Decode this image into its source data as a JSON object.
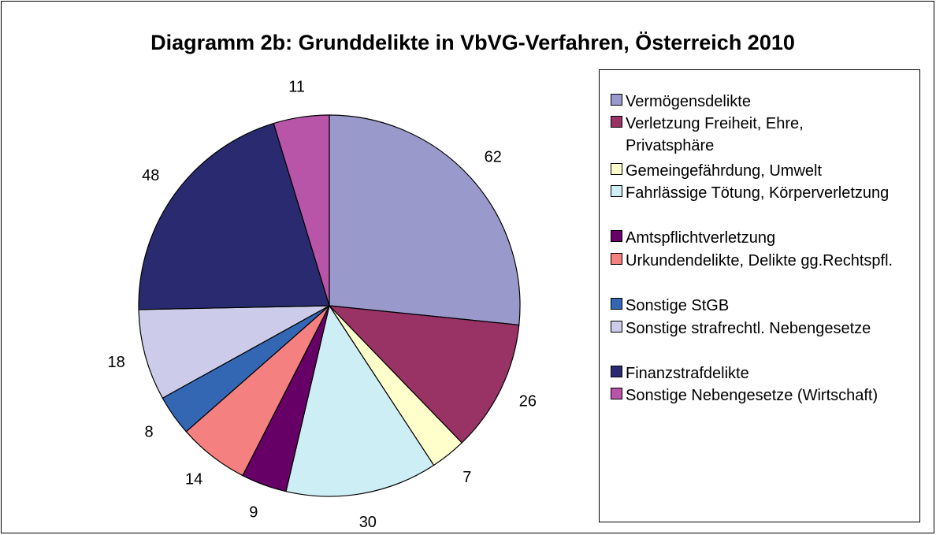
{
  "chart_data": {
    "type": "pie",
    "title": "Diagramm 2b: Grunddelikte in VbVG-Verfahren, Österreich 2010",
    "categories": [
      "Vermögensdelikte",
      "Verletzung Freiheit, Ehre, Privatsphäre",
      "Gemeingefährdung, Umwelt",
      "Fahrlässige Tötung, Körperverletzung",
      "Amtspflichtverletzung",
      "Urkundendelikte, Delikte gg.Rechtspfl.",
      "Sonstige StGB",
      "Sonstige strafrechtl. Nebengesetze",
      "Finanzstrafdelikte",
      "Sonstige Nebengesetze (Wirtschaft)"
    ],
    "values": [
      62,
      26,
      7,
      30,
      9,
      14,
      8,
      18,
      48,
      11
    ],
    "colors": [
      "#9999cc",
      "#993366",
      "#ffffcc",
      "#cdeef5",
      "#660066",
      "#f48080",
      "#3366b3",
      "#ccccea",
      "#2a2a70",
      "#b855a8"
    ],
    "legend": "right"
  }
}
